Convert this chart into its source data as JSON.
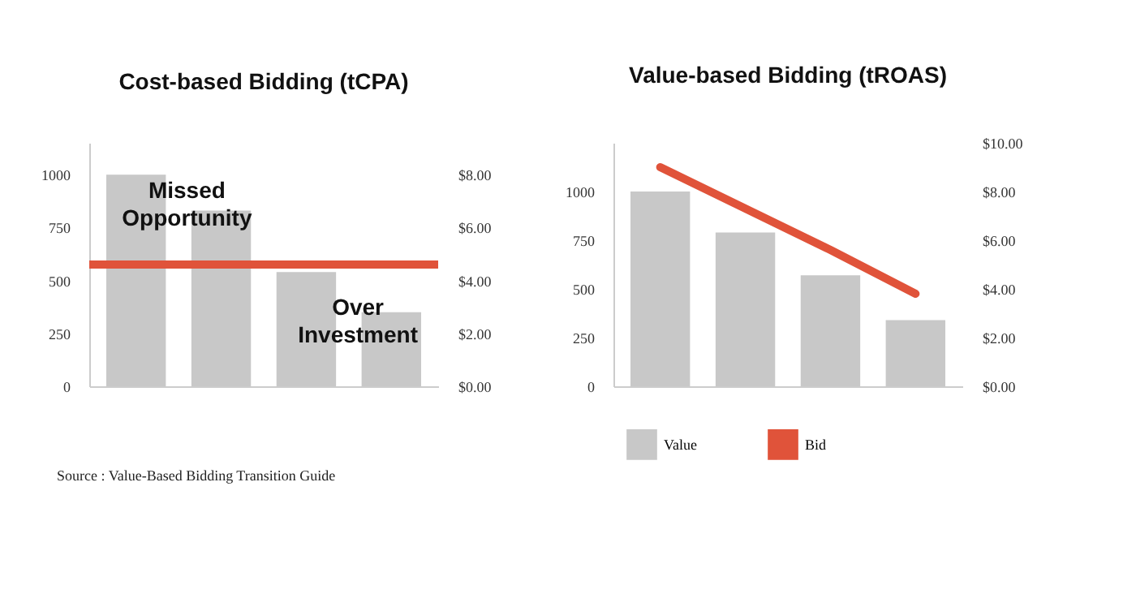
{
  "chart_data": [
    {
      "type": "bar",
      "title": "Cost-based Bidding (tCPA)",
      "categories": [
        null,
        null,
        null,
        null
      ],
      "series": [
        {
          "color": "#c8c8c8",
          "values": [
            1000,
            830,
            540,
            350
          ]
        }
      ],
      "ylim": [
        0,
        1150
      ],
      "yticks": [
        0,
        250,
        500,
        750,
        1000
      ],
      "y2lim": [
        0,
        9.2
      ],
      "y2ticks": [
        {
          "value": 0,
          "label": "$0.00"
        },
        {
          "value": 2,
          "label": "$2.00"
        },
        {
          "value": 4,
          "label": "$4.00"
        },
        {
          "value": 6,
          "label": "$6.00"
        },
        {
          "value": 8,
          "label": "$8.00"
        }
      ],
      "ref_lines": [
        {
          "axis": "y2",
          "value": 4.6,
          "color": "#e0533a"
        }
      ],
      "annotations": [
        "Missed Opportunity",
        "Over Investment",
        "Source : Value-Based Bidding Transition Guide"
      ],
      "grid": false,
      "legend": false
    },
    {
      "type": "bar",
      "title": "Value-based Bidding (tROAS)",
      "categories": [
        null,
        null,
        null,
        null
      ],
      "series": [
        {
          "name": "Value",
          "color": "#c8c8c8",
          "values": [
            1000,
            790,
            570,
            340
          ]
        },
        {
          "name": "Bid",
          "type": "line",
          "axis": "y2",
          "color": "#e0533a",
          "values": [
            9.0,
            7.3,
            5.6,
            3.8
          ]
        }
      ],
      "ylim": [
        0,
        1250
      ],
      "yticks": [
        0,
        250,
        500,
        750,
        1000
      ],
      "y2lim": [
        0,
        10
      ],
      "y2ticks": [
        {
          "value": 0,
          "label": "$0.00"
        },
        {
          "value": 2,
          "label": "$2.00"
        },
        {
          "value": 4,
          "label": "$4.00"
        },
        {
          "value": 6,
          "label": "$6.00"
        },
        {
          "value": 8,
          "label": "$8.00"
        },
        {
          "value": 10,
          "label": "$10.00"
        }
      ],
      "grid": false,
      "legend": "bottom"
    }
  ]
}
